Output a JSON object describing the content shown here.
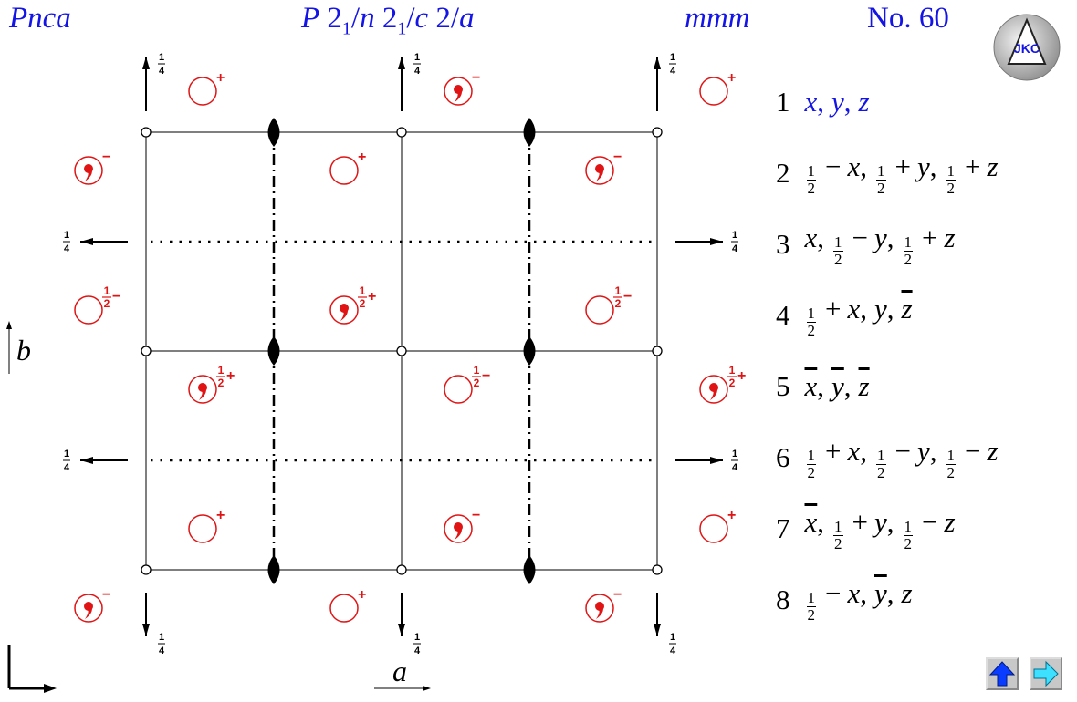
{
  "header": {
    "short_symbol": "Pnca",
    "full_symbol": [
      {
        "text": "P",
        "style": "italic"
      },
      {
        "text": " 2",
        "style": "roman"
      },
      {
        "text": "1",
        "style": "sub"
      },
      {
        "text": "/",
        "style": "roman"
      },
      {
        "text": "n",
        "style": "italic"
      },
      {
        "text": " 2",
        "style": "roman"
      },
      {
        "text": "1",
        "style": "sub"
      },
      {
        "text": "/",
        "style": "roman"
      },
      {
        "text": "c",
        "style": "italic"
      },
      {
        "text": " 2/",
        "style": "roman"
      },
      {
        "text": "a",
        "style": "italic"
      }
    ],
    "point_group": "mmm",
    "number": "No. 60",
    "color": "#1414e6"
  },
  "logo": "JKC",
  "separator": ",",
  "positions": [
    {
      "number": "1",
      "color": "#1414e6",
      "coords": [
        [
          "x"
        ],
        [
          "y"
        ],
        [
          "z"
        ]
      ]
    },
    {
      "number": "2",
      "coords": [
        [
          {
            "num": "1",
            "den": "2"
          },
          {
            "op": "−"
          },
          "x"
        ],
        [
          {
            "num": "1",
            "den": "2"
          },
          {
            "op": "+"
          },
          "y"
        ],
        [
          {
            "num": "1",
            "den": "2"
          },
          {
            "op": "+"
          },
          "z"
        ]
      ]
    },
    {
      "number": "3",
      "coords": [
        [
          "x"
        ],
        [
          {
            "num": "1",
            "den": "2"
          },
          {
            "op": "−"
          },
          "y"
        ],
        [
          {
            "num": "1",
            "den": "2"
          },
          {
            "op": "+"
          },
          "z"
        ]
      ]
    },
    {
      "number": "4",
      "coords": [
        [
          {
            "num": "1",
            "den": "2"
          },
          {
            "op": "+"
          },
          "x"
        ],
        [
          "y"
        ],
        [
          {
            "bar": "z"
          }
        ]
      ]
    },
    {
      "number": "5",
      "coords": [
        [
          {
            "bar": "x"
          }
        ],
        [
          {
            "bar": "y"
          }
        ],
        [
          {
            "bar": "z"
          }
        ]
      ]
    },
    {
      "number": "6",
      "coords": [
        [
          {
            "num": "1",
            "den": "2"
          },
          {
            "op": "+"
          },
          "x"
        ],
        [
          {
            "num": "1",
            "den": "2"
          },
          {
            "op": "−"
          },
          "y"
        ],
        [
          {
            "num": "1",
            "den": "2"
          },
          {
            "op": "−"
          },
          "z"
        ]
      ]
    },
    {
      "number": "7",
      "coords": [
        [
          {
            "bar": "x"
          }
        ],
        [
          {
            "num": "1",
            "den": "2"
          },
          {
            "op": "+"
          },
          "y"
        ],
        [
          {
            "num": "1",
            "den": "2"
          },
          {
            "op": "−"
          },
          "z"
        ]
      ]
    },
    {
      "number": "8",
      "coords": [
        [
          {
            "num": "1",
            "den": "2"
          },
          {
            "op": "−"
          },
          "x"
        ],
        [
          {
            "bar": "y"
          }
        ],
        [
          "z"
        ]
      ]
    }
  ],
  "diagram": {
    "quarter": {
      "num": "1",
      "den": "4"
    },
    "axis_a": "a",
    "axis_b": "b",
    "symbol_color": "#e01414",
    "symbols": [
      {
        "sign": "+"
      },
      {
        "sign": "−",
        "comma": true
      },
      {
        "sign": "+"
      },
      {
        "sign": "−",
        "comma": true
      },
      {
        "sign": "+"
      },
      {
        "sign": "−",
        "comma": true
      },
      {
        "frac": {
          "num": "1",
          "den": "2"
        },
        "sign": "−"
      },
      {
        "frac": {
          "num": "1",
          "den": "2"
        },
        "sign": "+",
        "comma": true
      },
      {
        "frac": {
          "num": "1",
          "den": "2"
        },
        "sign": "−"
      },
      {
        "frac": {
          "num": "1",
          "den": "2"
        },
        "sign": "+",
        "comma": true
      },
      {
        "frac": {
          "num": "1",
          "den": "2"
        },
        "sign": "−"
      },
      {
        "frac": {
          "num": "1",
          "den": "2"
        },
        "sign": "+",
        "comma": true
      },
      {
        "sign": "+"
      },
      {
        "sign": "−",
        "comma": true
      },
      {
        "sign": "+"
      },
      {
        "sign": "−",
        "comma": true
      },
      {
        "sign": "+"
      },
      {
        "sign": "−",
        "comma": true
      }
    ]
  }
}
